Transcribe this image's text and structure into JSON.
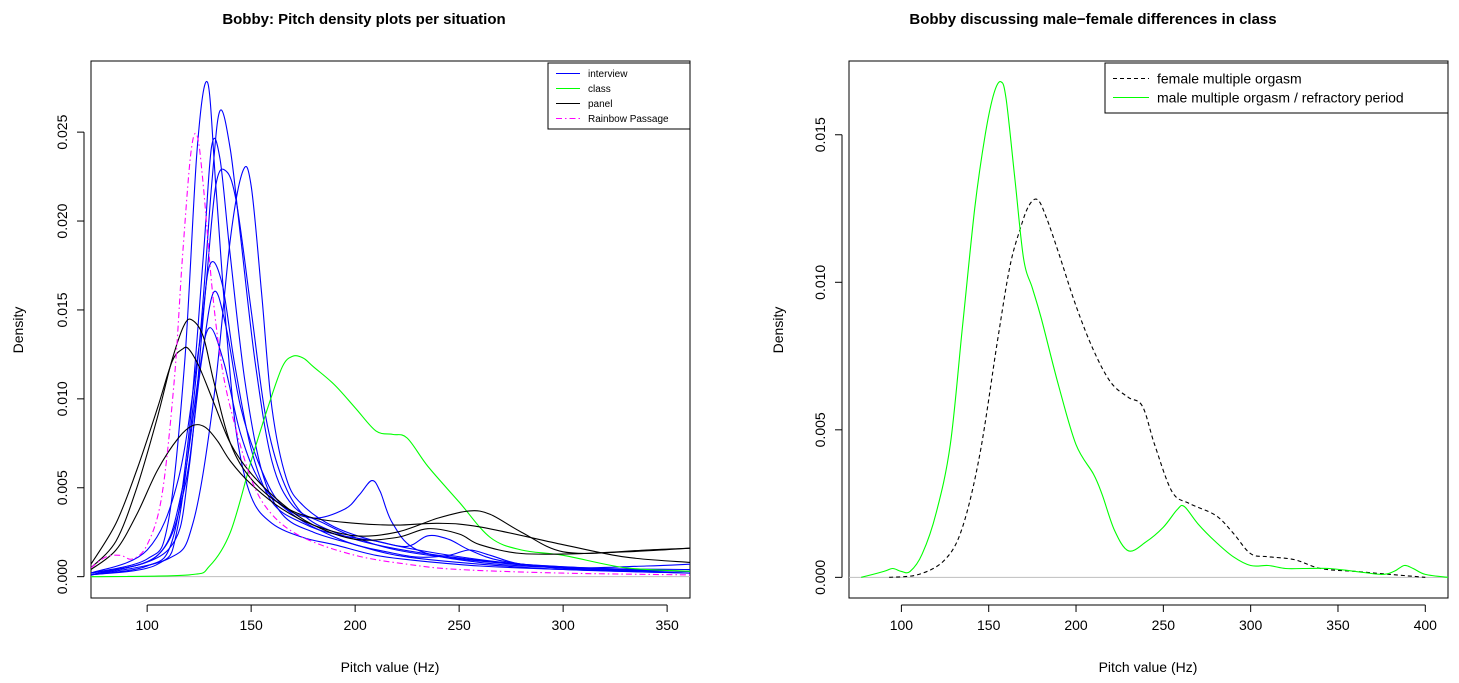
{
  "chart_data": [
    {
      "type": "line",
      "title": "Bobby: Pitch density plots per situation",
      "xlabel": "Pitch value (Hz)",
      "ylabel": "Density",
      "xlim": [
        73,
        361
      ],
      "ylim": [
        -0.0012,
        0.029
      ],
      "xticks": [
        100,
        150,
        200,
        250,
        300,
        350
      ],
      "yticks": [
        0.0,
        0.005,
        0.01,
        0.015,
        0.02,
        0.025
      ],
      "ytick_labels": [
        "0.000",
        "0.005",
        "0.010",
        "0.015",
        "0.020",
        "0.025"
      ],
      "baseline": 0,
      "legend_position": "top-right",
      "legend": [
        {
          "label": "interview",
          "color": "#0000ff",
          "dash": "solid"
        },
        {
          "label": "class",
          "color": "#00ff00",
          "dash": "solid"
        },
        {
          "label": "panel",
          "color": "#000000",
          "dash": "solid"
        },
        {
          "label": "Rainbow Passage",
          "color": "#ff00ff",
          "dash": "dashdot"
        }
      ],
      "series": [
        {
          "group": "interview",
          "color": "#0000ff",
          "dash": "solid",
          "x": [
            73,
            100,
            110,
            118,
            124,
            129,
            133,
            138,
            143,
            150,
            160,
            175,
            190,
            210,
            230,
            260,
            300,
            361
          ],
          "y": [
            0.0002,
            0.001,
            0.003,
            0.012,
            0.024,
            0.0278,
            0.022,
            0.014,
            0.008,
            0.0045,
            0.003,
            0.0022,
            0.0018,
            0.0012,
            0.0009,
            0.0006,
            0.0004,
            0.0002
          ]
        },
        {
          "group": "interview",
          "color": "#0000ff",
          "dash": "solid",
          "x": [
            73,
            100,
            112,
            120,
            127,
            131,
            135,
            140,
            147,
            155,
            165,
            180,
            200,
            220,
            250,
            300,
            361
          ],
          "y": [
            0.0001,
            0.0006,
            0.002,
            0.008,
            0.018,
            0.0242,
            0.0235,
            0.018,
            0.011,
            0.006,
            0.0035,
            0.0025,
            0.0018,
            0.0012,
            0.0008,
            0.0004,
            0.0002
          ]
        },
        {
          "group": "interview",
          "color": "#0000ff",
          "dash": "solid",
          "x": [
            73,
            105,
            115,
            125,
            131,
            135,
            140,
            145,
            152,
            160,
            170,
            185,
            200,
            220,
            250,
            300,
            361
          ],
          "y": [
            0.0001,
            0.0007,
            0.003,
            0.013,
            0.022,
            0.0262,
            0.024,
            0.019,
            0.012,
            0.0065,
            0.004,
            0.003,
            0.0022,
            0.0015,
            0.001,
            0.0005,
            0.0003
          ]
        },
        {
          "group": "interview",
          "color": "#0000ff",
          "dash": "solid",
          "x": [
            73,
            110,
            120,
            128,
            133,
            138,
            143,
            150,
            157,
            165,
            175,
            190,
            210,
            240,
            280,
            330,
            361
          ],
          "y": [
            0.0001,
            0.0015,
            0.006,
            0.016,
            0.022,
            0.0228,
            0.021,
            0.015,
            0.009,
            0.0055,
            0.0035,
            0.0025,
            0.0018,
            0.0012,
            0.0007,
            0.0004,
            0.0003
          ]
        },
        {
          "group": "interview",
          "color": "#0000ff",
          "dash": "solid",
          "x": [
            73,
            110,
            122,
            132,
            140,
            146,
            150,
            155,
            160,
            167,
            175,
            190,
            210,
            240,
            280,
            330,
            361
          ],
          "y": [
            0.0001,
            0.001,
            0.003,
            0.01,
            0.019,
            0.0228,
            0.022,
            0.016,
            0.0095,
            0.0055,
            0.004,
            0.0028,
            0.002,
            0.0013,
            0.0007,
            0.0004,
            0.0003
          ]
        },
        {
          "group": "interview",
          "color": "#0000ff",
          "dash": "solid",
          "x": [
            73,
            105,
            118,
            126,
            132,
            138,
            145,
            155,
            165,
            180,
            195,
            202,
            208,
            212,
            218,
            230,
            260,
            300,
            361
          ],
          "y": [
            0.0002,
            0.0012,
            0.005,
            0.012,
            0.016,
            0.014,
            0.0095,
            0.006,
            0.004,
            0.0033,
            0.0038,
            0.0046,
            0.0054,
            0.0048,
            0.003,
            0.0015,
            0.0008,
            0.0005,
            0.0004
          ]
        },
        {
          "group": "interview",
          "color": "#0000ff",
          "dash": "solid",
          "x": [
            73,
            100,
            115,
            125,
            130,
            136,
            142,
            150,
            160,
            175,
            190,
            210,
            225,
            235,
            245,
            255,
            270,
            300,
            340,
            361
          ],
          "y": [
            0.0002,
            0.0015,
            0.0055,
            0.013,
            0.0175,
            0.0165,
            0.012,
            0.0072,
            0.0042,
            0.003,
            0.0024,
            0.002,
            0.0017,
            0.0023,
            0.0021,
            0.0015,
            0.0009,
            0.0005,
            0.0006,
            0.0007
          ]
        },
        {
          "group": "interview",
          "color": "#0000ff",
          "dash": "solid",
          "x": [
            73,
            105,
            117,
            125,
            130,
            137,
            145,
            155,
            170,
            185,
            200,
            215,
            230,
            245,
            255,
            265,
            280,
            310,
            361
          ],
          "y": [
            0.0002,
            0.0012,
            0.005,
            0.0115,
            0.014,
            0.012,
            0.008,
            0.0052,
            0.0035,
            0.0025,
            0.0018,
            0.0014,
            0.0011,
            0.0012,
            0.0015,
            0.0012,
            0.0007,
            0.0004,
            0.0003
          ]
        },
        {
          "group": "class",
          "color": "#00ff00",
          "dash": "solid",
          "x": [
            73,
            120,
            130,
            140,
            150,
            158,
            165,
            170,
            175,
            180,
            190,
            200,
            210,
            218,
            225,
            235,
            250,
            265,
            280,
            300,
            330,
            361
          ],
          "y": [
            0.0,
            0.0001,
            0.0006,
            0.0025,
            0.0065,
            0.0095,
            0.0118,
            0.0124,
            0.0123,
            0.0118,
            0.0108,
            0.0095,
            0.0082,
            0.008,
            0.0078,
            0.0062,
            0.0042,
            0.0022,
            0.0015,
            0.0012,
            0.0005,
            0.0003
          ]
        },
        {
          "group": "panel",
          "color": "#000000",
          "dash": "solid",
          "x": [
            73,
            85,
            95,
            105,
            112,
            118,
            122,
            127,
            132,
            140,
            150,
            165,
            180,
            200,
            220,
            240,
            260,
            300,
            330,
            361
          ],
          "y": [
            0.0005,
            0.002,
            0.005,
            0.009,
            0.0122,
            0.0142,
            0.0144,
            0.0135,
            0.011,
            0.0075,
            0.0055,
            0.004,
            0.0033,
            0.003,
            0.0029,
            0.003,
            0.0028,
            0.0018,
            0.0011,
            0.0008
          ]
        },
        {
          "group": "panel",
          "color": "#000000",
          "dash": "solid",
          "x": [
            73,
            85,
            95,
            105,
            112,
            117,
            120,
            125,
            132,
            140,
            150,
            165,
            180,
            200,
            220,
            235,
            250,
            260,
            280,
            310,
            340,
            361
          ],
          "y": [
            0.0007,
            0.003,
            0.006,
            0.0095,
            0.0121,
            0.0128,
            0.0128,
            0.0118,
            0.0098,
            0.0075,
            0.0058,
            0.0041,
            0.0029,
            0.0021,
            0.0022,
            0.0027,
            0.0024,
            0.0018,
            0.0013,
            0.0013,
            0.0015,
            0.0016
          ]
        },
        {
          "group": "panel",
          "color": "#000000",
          "dash": "solid",
          "x": [
            73,
            85,
            95,
            105,
            115,
            122,
            128,
            134,
            140,
            150,
            165,
            180,
            200,
            220,
            240,
            255,
            265,
            280,
            300,
            330,
            361
          ],
          "y": [
            0.0004,
            0.0015,
            0.0035,
            0.006,
            0.0078,
            0.0085,
            0.0084,
            0.0076,
            0.0065,
            0.0052,
            0.0038,
            0.0029,
            0.0023,
            0.0025,
            0.0033,
            0.0037,
            0.0035,
            0.0025,
            0.0014,
            0.0014,
            0.0016
          ]
        },
        {
          "group": "Rainbow Passage",
          "color": "#ff00ff",
          "dash": "dashdot",
          "x": [
            73,
            80,
            87,
            93,
            100,
            107,
            113,
            117,
            121,
            124,
            127,
            131,
            135,
            140,
            150,
            160,
            175,
            200,
            225,
            250,
            300,
            361
          ],
          "y": [
            0.0005,
            0.0011,
            0.0012,
            0.001,
            0.0018,
            0.0045,
            0.011,
            0.018,
            0.0238,
            0.0248,
            0.022,
            0.0165,
            0.0125,
            0.0095,
            0.0055,
            0.0035,
            0.0022,
            0.0012,
            0.0007,
            0.0004,
            0.0002,
            0.0001
          ]
        }
      ]
    },
    {
      "type": "line",
      "title": "Bobby discussing male−female differences in class",
      "xlabel": "Pitch value (Hz)",
      "ylabel": "Density",
      "xlim": [
        70,
        413
      ],
      "ylim": [
        -0.0007,
        0.0175
      ],
      "xticks": [
        100,
        150,
        200,
        250,
        300,
        350,
        400
      ],
      "yticks": [
        0.0,
        0.005,
        0.01,
        0.015
      ],
      "ytick_labels": [
        "0.000",
        "0.005",
        "0.010",
        "0.015"
      ],
      "baseline": 0,
      "legend_position": "top-right",
      "legend": [
        {
          "label": "female multiple orgasm",
          "color": "#000000",
          "dash": "dashed"
        },
        {
          "label": "male multiple orgasm / refractory period",
          "color": "#00ff00",
          "dash": "solid"
        }
      ],
      "series": [
        {
          "name": "female multiple orgasm",
          "color": "#000000",
          "dash": "dashed",
          "x": [
            93,
            110,
            125,
            135,
            145,
            155,
            162,
            168,
            173,
            178,
            183,
            190,
            200,
            210,
            220,
            230,
            238,
            245,
            255,
            265,
            280,
            290,
            300,
            310,
            325,
            340,
            360,
            380,
            400
          ],
          "y": [
            0.0,
            0.0001,
            0.0006,
            0.0017,
            0.0042,
            0.008,
            0.0105,
            0.0118,
            0.0126,
            0.0128,
            0.0122,
            0.011,
            0.0092,
            0.0077,
            0.0066,
            0.0061,
            0.0058,
            0.0045,
            0.0029,
            0.0025,
            0.0021,
            0.0015,
            0.0008,
            0.0007,
            0.0006,
            0.0003,
            0.0002,
            0.0001,
            0.0
          ]
        },
        {
          "name": "male multiple orgasm / refractory period",
          "color": "#00ff00",
          "dash": "solid",
          "x": [
            77,
            90,
            95,
            100,
            105,
            112,
            120,
            128,
            135,
            142,
            148,
            153,
            157,
            160,
            165,
            170,
            175,
            180,
            190,
            200,
            210,
            215,
            222,
            230,
            240,
            250,
            258,
            262,
            270,
            280,
            290,
            300,
            310,
            320,
            330,
            345,
            360,
            375,
            382,
            388,
            393,
            400,
            413
          ],
          "y": [
            0.0,
            0.0002,
            0.0003,
            0.0002,
            0.0002,
            0.0008,
            0.0022,
            0.0045,
            0.0085,
            0.0125,
            0.015,
            0.0164,
            0.0168,
            0.0162,
            0.0135,
            0.0108,
            0.0098,
            0.0088,
            0.0065,
            0.0045,
            0.0035,
            0.0028,
            0.0016,
            0.0009,
            0.0012,
            0.0017,
            0.0023,
            0.0024,
            0.0018,
            0.0012,
            0.0007,
            0.0004,
            0.0004,
            0.0003,
            0.0003,
            0.0003,
            0.0002,
            0.0001,
            0.0002,
            0.0004,
            0.0003,
            0.0001,
            0.0
          ]
        }
      ]
    }
  ]
}
